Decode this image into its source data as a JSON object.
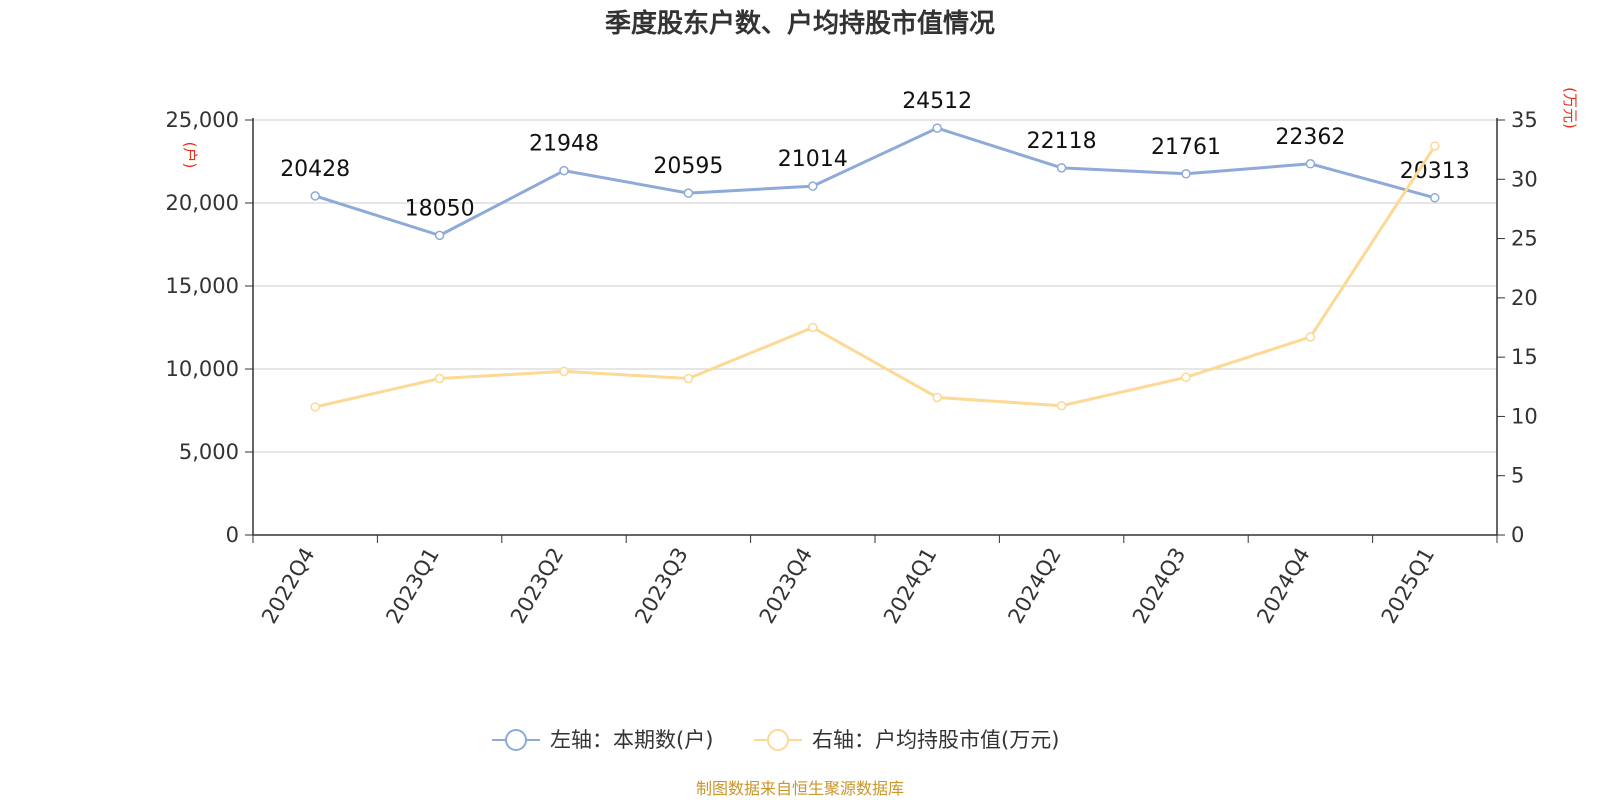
{
  "chart_data": {
    "type": "line",
    "title": "季度股东户数、户均持股市值情况",
    "categories": [
      "2022Q4",
      "2023Q1",
      "2023Q2",
      "2023Q3",
      "2023Q4",
      "2024Q1",
      "2024Q2",
      "2024Q3",
      "2024Q4",
      "2025Q1"
    ],
    "left_axis": {
      "unit": "(户)",
      "ylim": [
        0,
        25000
      ],
      "ticks": [
        "0",
        "5,000",
        "10,000",
        "15,000",
        "20,000",
        "25,000"
      ]
    },
    "right_axis": {
      "unit": "(万元)",
      "ylim": [
        0,
        35
      ],
      "ticks": [
        "0",
        "5",
        "10",
        "15",
        "20",
        "25",
        "30",
        "35"
      ]
    },
    "series": [
      {
        "name": "左轴：本期数(户)",
        "axis": "left",
        "color": "#8eaad8",
        "values": [
          20428,
          18050,
          21948,
          20595,
          21014,
          24512,
          22118,
          21761,
          22362,
          20313
        ],
        "labels": [
          "20428",
          "18050",
          "21948",
          "20595",
          "21014",
          "24512",
          "22118",
          "21761",
          "22362",
          "20313"
        ]
      },
      {
        "name": "右轴：户均持股市值(万元)",
        "axis": "right",
        "color": "#fcd994",
        "values": [
          10.8,
          13.2,
          13.8,
          13.2,
          17.5,
          11.6,
          10.9,
          13.3,
          16.7,
          32.8
        ]
      }
    ],
    "grid": true,
    "legend_position": "bottom"
  },
  "source": "制图数据来自恒生聚源数据库"
}
